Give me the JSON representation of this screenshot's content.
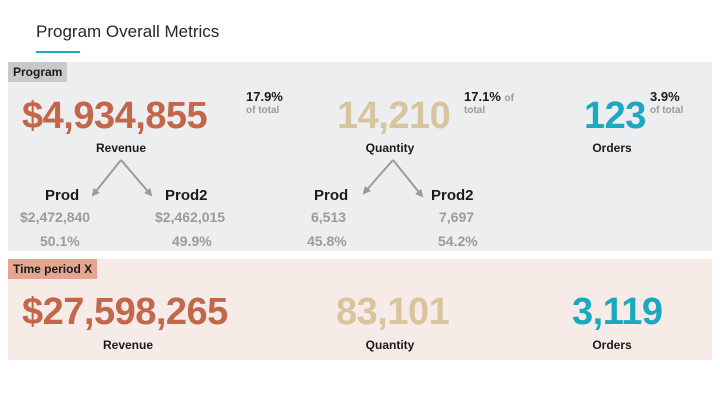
{
  "header": {
    "title": "Program Overall Metrics"
  },
  "colors": {
    "revenue": "#c4664a",
    "quantity": "#d8c59d",
    "orders": "#1aa9bf",
    "accent": "#21a9b5"
  },
  "program": {
    "tag": "Program",
    "revenue": {
      "value": "$4,934,855",
      "label": "Revenue",
      "pct": "17.9%",
      "of_total": "of total"
    },
    "quantity": {
      "value": "14,210",
      "label": "Quantity",
      "pct": "17.1%",
      "of_total_a": "of",
      "of_total_b": "total"
    },
    "orders": {
      "value": "123",
      "label": "Orders",
      "pct": "3.9%",
      "of_total": "of total"
    },
    "revenue_breakdown": [
      {
        "name": "Prod",
        "value": "$2,472,840",
        "share": "50.1%"
      },
      {
        "name": "Prod2",
        "value": "$2,462,015",
        "share": "49.9%"
      }
    ],
    "quantity_breakdown": [
      {
        "name": "Prod",
        "value": "6,513",
        "share": "45.8%"
      },
      {
        "name": "Prod2",
        "value": "7,697",
        "share": "54.2%"
      }
    ]
  },
  "period": {
    "tag": "Time period X",
    "revenue": {
      "value": "$27,598,265",
      "label": "Revenue"
    },
    "quantity": {
      "value": "83,101",
      "label": "Quantity"
    },
    "orders": {
      "value": "3,119",
      "label": "Orders"
    }
  }
}
